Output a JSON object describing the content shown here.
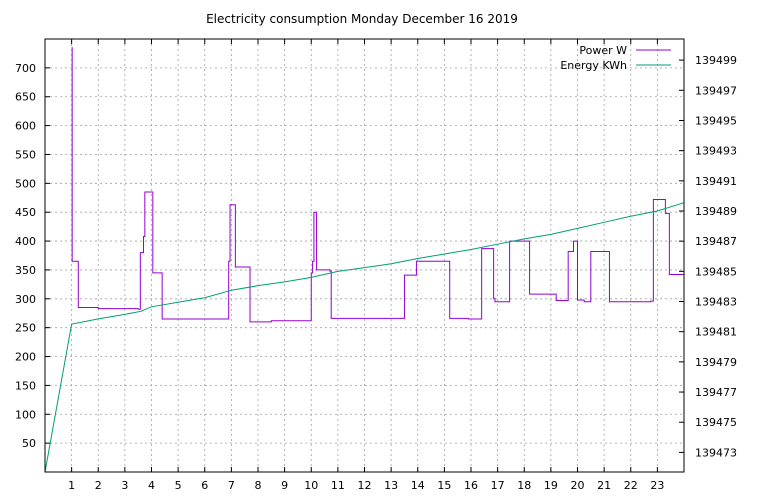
{
  "chart_data": {
    "type": "line",
    "title": "Electricity consumption Monday December 16 2019",
    "xlabel": "",
    "ylabel": "",
    "xlim": [
      0,
      24
    ],
    "ylim": [
      0,
      750
    ],
    "y2lim": [
      139471.7,
      139500.4
    ],
    "x_ticks": [
      1,
      2,
      3,
      4,
      5,
      6,
      7,
      8,
      9,
      10,
      11,
      12,
      13,
      14,
      15,
      16,
      17,
      18,
      19,
      20,
      21,
      22,
      23
    ],
    "x_tick_labels": [
      "1",
      "2",
      "3",
      "4",
      "5",
      "6",
      "7",
      "8",
      "9",
      "10",
      "11",
      "12",
      "13",
      "14",
      "15",
      "16",
      "17",
      "18",
      "19",
      "20",
      "21",
      "22",
      "23"
    ],
    "y_ticks": [
      50,
      100,
      150,
      200,
      250,
      300,
      350,
      400,
      450,
      500,
      550,
      600,
      650,
      700
    ],
    "y_tick_labels": [
      "50",
      "100",
      "150",
      "200",
      "250",
      "300",
      "350",
      "400",
      "450",
      "500",
      "550",
      "600",
      "650",
      "700"
    ],
    "y2_ticks": [
      139473,
      139475,
      139477,
      139479,
      139481,
      139483,
      139485,
      139487,
      139489,
      139491,
      139493,
      139495,
      139497,
      139499
    ],
    "y2_tick_labels": [
      "139473",
      "139475",
      "139477",
      "139479",
      "139481",
      "139483",
      "139485",
      "139487",
      "139489",
      "139491",
      "139493",
      "139495",
      "139497",
      "139499"
    ],
    "grid": true,
    "legend_position": "top-right",
    "series": [
      {
        "name": "Power W",
        "color": "#9400d3",
        "axis": "y1",
        "step": true,
        "x": [
          1.0,
          1.02,
          1.25,
          2.0,
          3.5,
          3.58,
          3.7,
          3.75,
          4.05,
          4.4,
          6.5,
          6.9,
          6.95,
          7.15,
          7.6,
          7.7,
          8.5,
          10.0,
          10.05,
          10.1,
          10.2,
          10.7,
          10.75,
          12.8,
          13.5,
          13.95,
          15.2,
          15.9,
          16.4,
          16.85,
          16.9,
          17.45,
          18.2,
          19.2,
          19.65,
          19.85,
          20.0,
          20.25,
          20.5,
          21.2,
          22.75,
          22.85,
          23.3,
          23.45,
          24.0
        ],
        "y": [
          735,
          365,
          285,
          283,
          282,
          380,
          408,
          485,
          345,
          265,
          265,
          365,
          463,
          355,
          355,
          260,
          262,
          345,
          365,
          450,
          350,
          348,
          266,
          266,
          341,
          365,
          266,
          265,
          387,
          300,
          295,
          400,
          308,
          297,
          382,
          400,
          298,
          295,
          382,
          295,
          296,
          472,
          448,
          342,
          342
        ]
      },
      {
        "name": "Energy KWh",
        "color": "#009e73",
        "axis": "y2",
        "step": false,
        "x": [
          0.0,
          1.0,
          2.0,
          3.0,
          3.6,
          4.0,
          5.0,
          6.0,
          7.0,
          8.0,
          9.0,
          10.0,
          11.0,
          12.0,
          13.0,
          14.0,
          15.0,
          16.0,
          17.0,
          18.0,
          19.0,
          20.0,
          21.0,
          22.0,
          23.0,
          24.0
        ],
        "y": [
          139471.7,
          139481.5,
          139481.85,
          139482.15,
          139482.35,
          139482.65,
          139482.95,
          139483.25,
          139483.75,
          139484.05,
          139484.3,
          139484.6,
          139485.0,
          139485.25,
          139485.5,
          139485.85,
          139486.15,
          139486.45,
          139486.8,
          139487.15,
          139487.45,
          139487.85,
          139488.25,
          139488.65,
          139489.0,
          139489.55
        ]
      }
    ]
  }
}
